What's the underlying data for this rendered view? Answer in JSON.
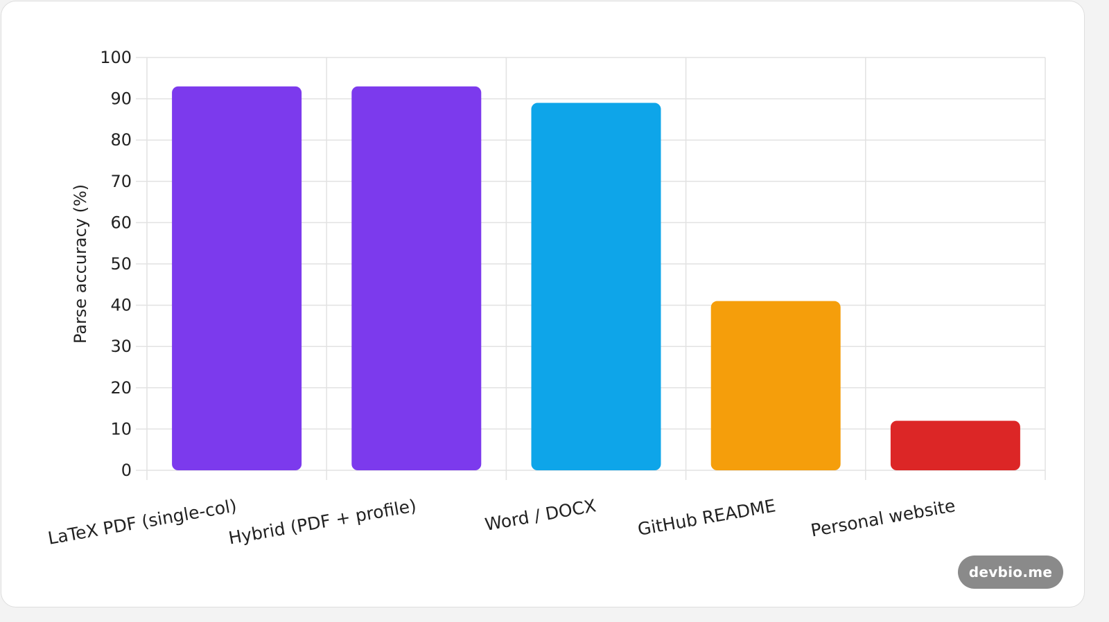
{
  "chart_data": {
    "type": "bar",
    "categories": [
      "LaTeX PDF (single-col)",
      "Hybrid (PDF + profile)",
      "Word / DOCX",
      "GitHub README",
      "Personal website"
    ],
    "values": [
      93,
      93,
      89,
      41,
      12
    ],
    "colors": [
      "#7c3aed",
      "#7c3aed",
      "#0ea5e9",
      "#f59e0b",
      "#dc2626"
    ],
    "ylabel": "Parse accuracy (%)",
    "xlabel": "",
    "ylim": [
      0,
      100
    ],
    "yticks": [
      0,
      10,
      20,
      30,
      40,
      50,
      60,
      70,
      80,
      90,
      100
    ],
    "grid": true,
    "legend": "none"
  },
  "badge": {
    "label": "devbio.me"
  }
}
